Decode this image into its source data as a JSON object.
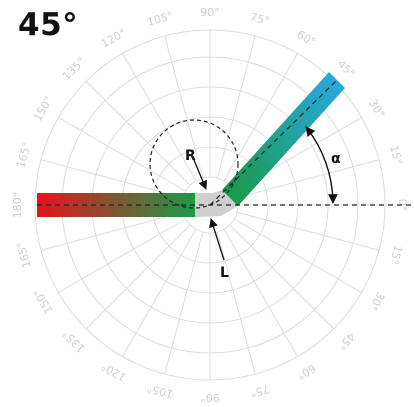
{
  "title": "45°",
  "diagram": {
    "angle_deg": 45,
    "labels": {
      "radius": "R",
      "length": "L",
      "angle": "α"
    },
    "scale_upper": [
      "0°",
      "15°",
      "30°",
      "45°",
      "60°",
      "75°",
      "90°",
      "105°",
      "120°",
      "135°",
      "150°",
      "165°",
      "180°"
    ],
    "scale_lower": [
      "165°",
      "150°",
      "135°",
      "120°",
      "105°",
      "90°",
      "75°",
      "60°",
      "45°",
      "30°",
      "15°"
    ],
    "colors": {
      "grid": "#dcdcdc",
      "tick_label": "#cfcfcf",
      "bar_start": "#e3141e",
      "bar_mid": "#1a9a48",
      "bar_end": "#29a8e0",
      "bend": "#cfcfcf",
      "centerline": "#222222"
    }
  }
}
